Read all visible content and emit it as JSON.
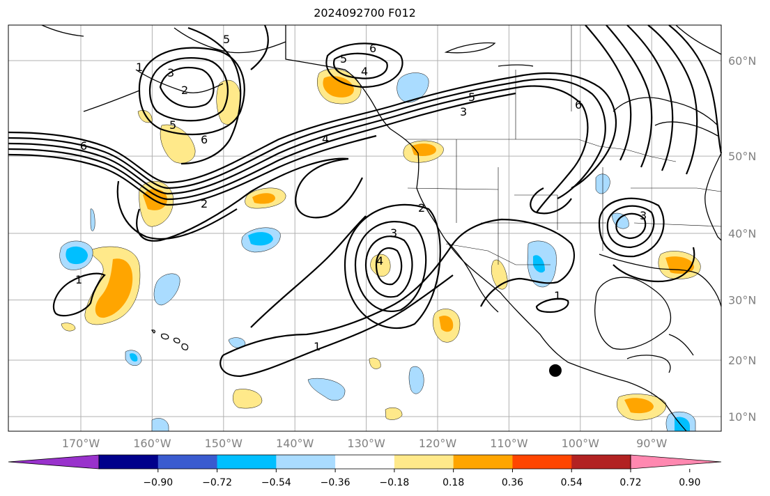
{
  "title": "2024092700 F012",
  "latitudes": [
    {
      "label": "60°N",
      "value": 60
    },
    {
      "label": "50°N",
      "value": 50
    },
    {
      "label": "40°N",
      "value": 40
    },
    {
      "label": "30°N",
      "value": 30
    },
    {
      "label": "20°N",
      "value": 20
    },
    {
      "label": "10°N",
      "value": 10
    }
  ],
  "longitudes": [
    {
      "label": "170°W",
      "value": -170
    },
    {
      "label": "160°W",
      "value": -160
    },
    {
      "label": "150°W",
      "value": -150
    },
    {
      "label": "140°W",
      "value": -140
    },
    {
      "label": "130°W",
      "value": -130
    },
    {
      "label": "120°W",
      "value": -120
    },
    {
      "label": "110°W",
      "value": -110
    },
    {
      "label": "100°W",
      "value": -100
    },
    {
      "label": "90°W",
      "value": -90
    }
  ],
  "colorbar": {
    "ticks": [
      "−0.90",
      "−0.72",
      "−0.54",
      "−0.36",
      "−0.18",
      "0.18",
      "0.36",
      "0.54",
      "0.72",
      "0.90"
    ],
    "colors": [
      "#9932cc",
      "#00008b",
      "#3a5bcf",
      "#00bfff",
      "#aadcff",
      "#ffffff",
      "#ffe98a",
      "#ffa500",
      "#ff4500",
      "#b22222",
      "#ff88b0"
    ],
    "extend": "both"
  },
  "contour_labels": [
    "5",
    "6",
    "5",
    "4",
    "2",
    "3",
    "1",
    "5",
    "6",
    "6",
    "5",
    "3",
    "4",
    "6",
    "2",
    "2",
    "3",
    "4",
    "1",
    "1",
    "1",
    "3"
  ],
  "marker": {
    "name": "storm-center",
    "lon": -103.5,
    "lat": 18.2
  }
}
